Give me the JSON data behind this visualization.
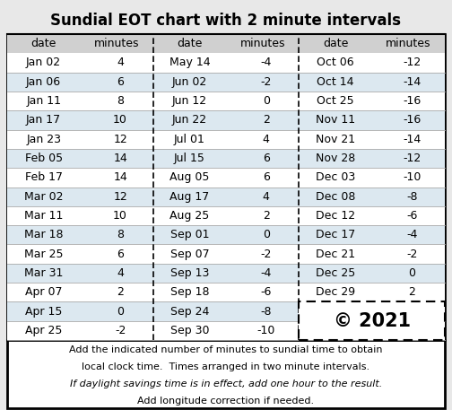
{
  "title": "Sundial EOT chart with 2 minute intervals",
  "col1_dates": [
    "Jan 02",
    "Jan 06",
    "Jan 11",
    "Jan 17",
    "Jan 23",
    "Feb 05",
    "Feb 17",
    "Mar 02",
    "Mar 11",
    "Mar 18",
    "Mar 25",
    "Mar 31",
    "Apr 07",
    "Apr 15",
    "Apr 25"
  ],
  "col1_mins": [
    4,
    6,
    8,
    10,
    12,
    14,
    14,
    12,
    10,
    8,
    6,
    4,
    2,
    0,
    -2
  ],
  "col2_dates": [
    "May 14",
    "Jun 02",
    "Jun 12",
    "Jun 22",
    "Jul 01",
    "Jul 15",
    "Aug 05",
    "Aug 17",
    "Aug 25",
    "Sep 01",
    "Sep 07",
    "Sep 13",
    "Sep 18",
    "Sep 24",
    "Sep 30"
  ],
  "col2_mins": [
    -4,
    -2,
    0,
    2,
    4,
    6,
    6,
    4,
    2,
    0,
    -2,
    -4,
    -6,
    -8,
    -10
  ],
  "col3_dates": [
    "Oct 06",
    "Oct 14",
    "Oct 25",
    "Nov 11",
    "Nov 21",
    "Nov 28",
    "Dec 03",
    "Dec 08",
    "Dec 12",
    "Dec 17",
    "Dec 21",
    "Dec 25",
    "Dec 29"
  ],
  "col3_mins": [
    -12,
    -14,
    -16,
    -16,
    -14,
    -12,
    -10,
    -8,
    -6,
    -4,
    -2,
    0,
    2
  ],
  "copyright": "© 2021",
  "footnote1": "Add the indicated number of minutes to sundial time to obtain",
  "footnote2": "local clock time.  Times arranged in two minute intervals.",
  "footnote3": "If daylight savings time is in effect, add one hour to the result.",
  "footnote4": "Add longitude correction if needed.",
  "header_date": "date",
  "header_minutes": "minutes",
  "fig_bg": "#e8e8e8",
  "table_bg": "#ffffff",
  "header_bg": "#d0d0d0",
  "alt_row_bg": "#dce8f0",
  "title_fontsize": 12,
  "cell_fontsize": 9,
  "footnote_fontsize": 8,
  "copyright_fontsize": 15
}
